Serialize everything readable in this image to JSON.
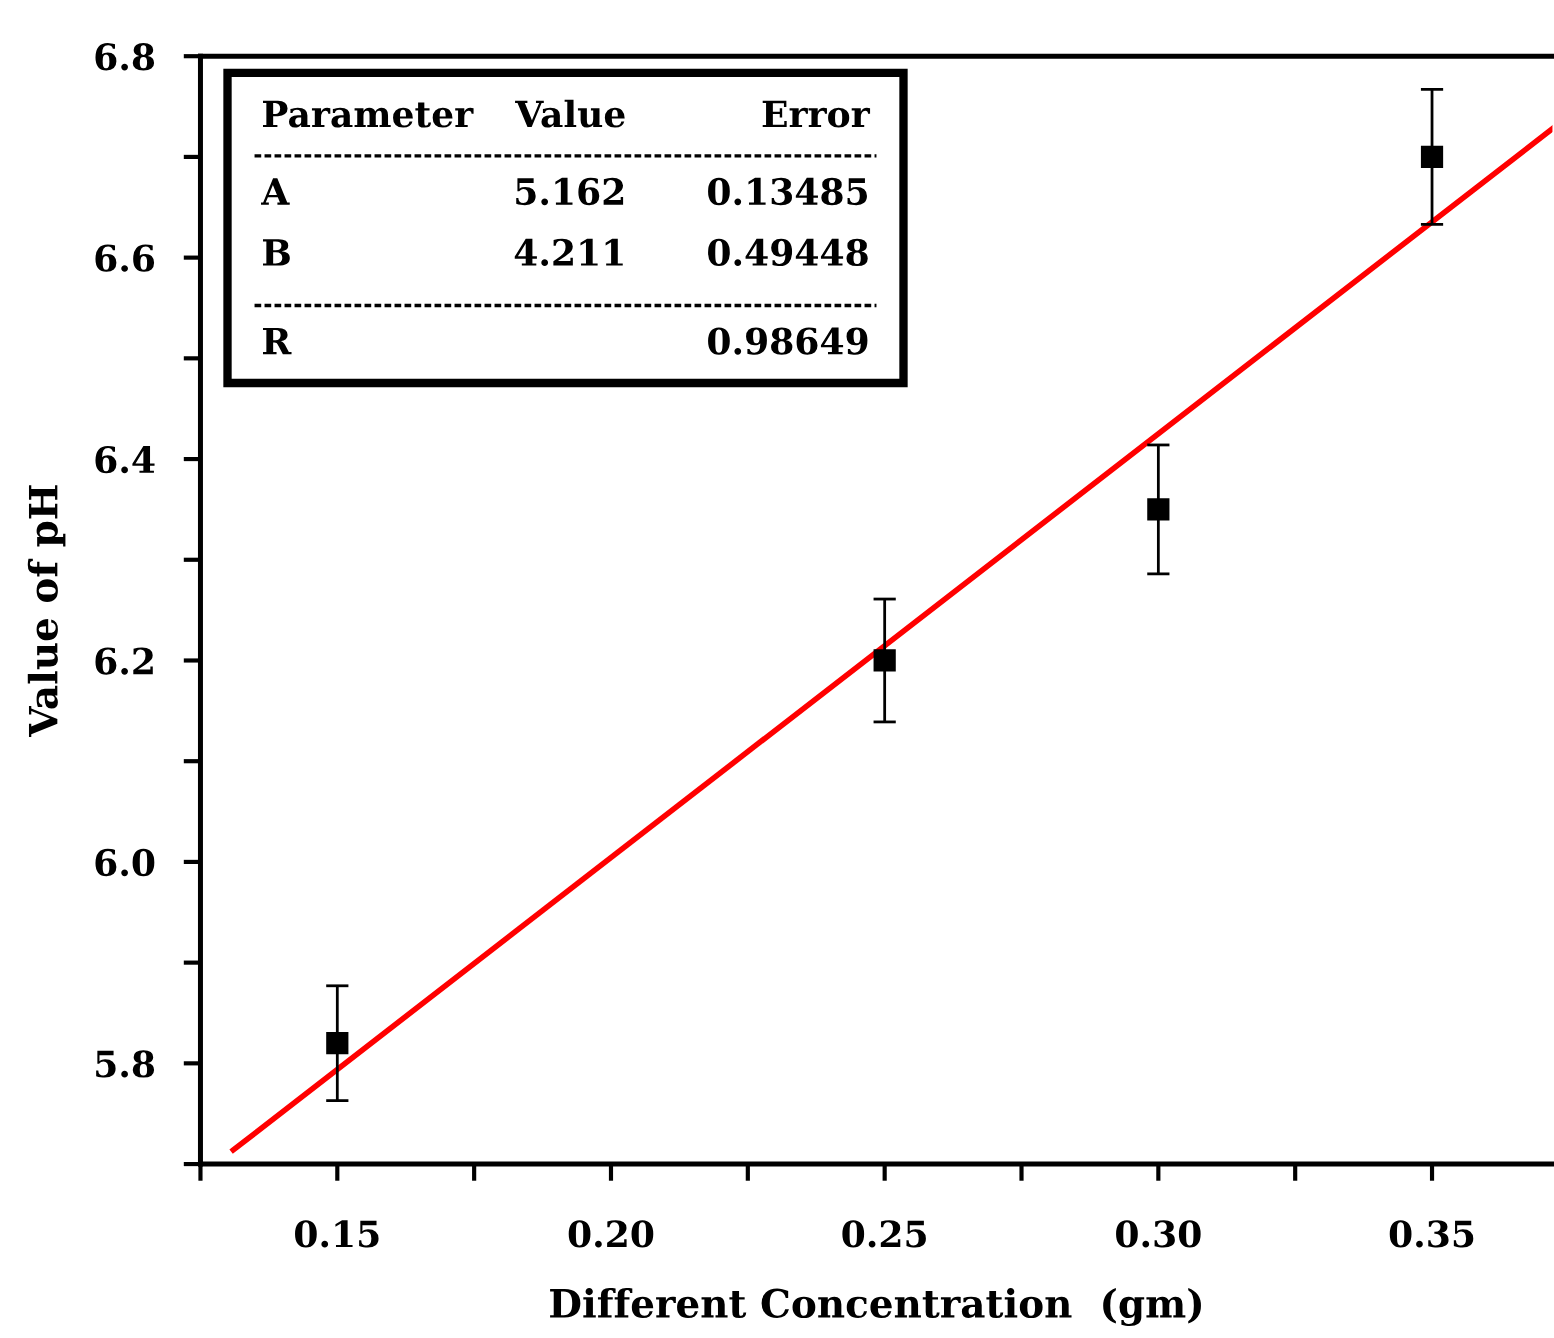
{
  "chart_data": {
    "type": "scatter",
    "xlabel": "Different Concentration  (gm)",
    "ylabel": "Value of pH",
    "series": [
      {
        "color": "#000000",
        "marker": "square",
        "x": [
          0.15,
          0.25,
          0.3,
          0.35
        ],
        "values": [
          5.82,
          6.2,
          6.35,
          6.7
        ],
        "errors": [
          0.057,
          0.061,
          0.064,
          0.067
        ]
      },
      {
        "type": "line",
        "color": "#ff0000",
        "marker": "none",
        "line_style": "solid",
        "x": [
          0.131,
          0.372
        ],
        "values": [
          5.714,
          6.728
        ]
      }
    ],
    "xlim": [
      0.125,
      0.372
    ],
    "xticks": [
      {
        "value": 0.125,
        "label": null
      },
      0.15,
      {
        "value": 0.175,
        "label": null
      },
      {
        "value": 0.2,
        "label": "0.20"
      },
      {
        "value": 0.225,
        "label": null
      },
      0.25,
      {
        "value": 0.275,
        "label": null
      },
      {
        "value": 0.3,
        "label": "0.30"
      },
      {
        "value": 0.325,
        "label": null
      },
      0.35
    ],
    "ylim": [
      5.7,
      6.8
    ],
    "yticks": [
      {
        "value": 5.7,
        "label": null
      },
      5.8,
      {
        "value": 5.9,
        "label": null
      },
      {
        "value": 6.0,
        "label": "6.0"
      },
      {
        "value": 6.1,
        "label": null
      },
      6.2,
      {
        "value": 6.3,
        "label": null
      },
      6.4,
      {
        "value": 6.5,
        "label": null
      },
      6.6,
      {
        "value": 6.7,
        "label": null
      },
      6.8
    ],
    "grid": false,
    "legend": false,
    "annotations": [
      "Parameter",
      "Value",
      "Error",
      "A",
      "5.162",
      "0.13485",
      "B",
      "4.211",
      "0.49448",
      "R",
      "0.98649"
    ]
  }
}
